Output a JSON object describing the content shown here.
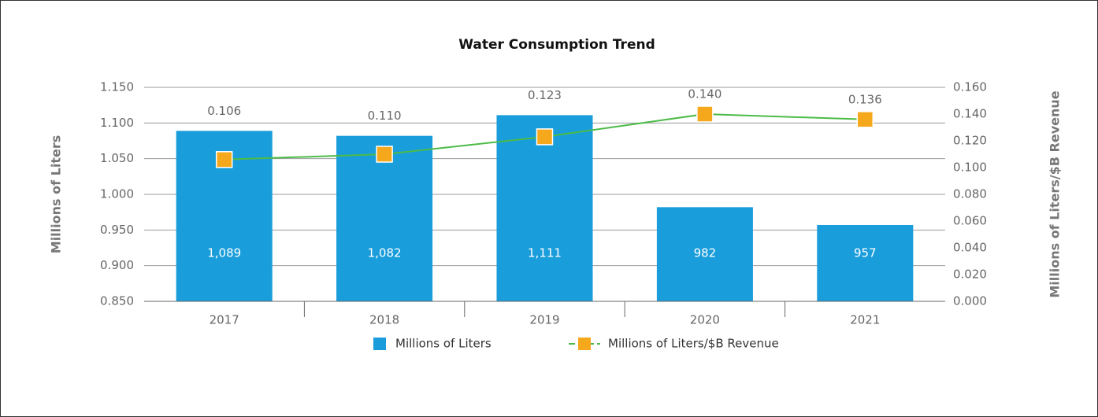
{
  "chart_data": {
    "type": "bar",
    "title": "Water Consumption Trend",
    "categories": [
      "2017",
      "2018",
      "2019",
      "2020",
      "2021"
    ],
    "y_label": "Millions of Liters",
    "y2_label": "Millions of Liters/$B Revenue",
    "ylim": [
      0.85,
      1.15
    ],
    "yticks": [
      {
        "value": 0.85,
        "label": "0.850"
      },
      {
        "value": 0.9,
        "label": "0.900"
      },
      {
        "value": 0.95,
        "label": "0.950"
      },
      {
        "value": 1.0,
        "label": "1.000"
      },
      {
        "value": 1.05,
        "label": "1.050"
      },
      {
        "value": 1.1,
        "label": "1.100"
      },
      {
        "value": 1.15,
        "label": "1.150"
      }
    ],
    "y2lim": [
      0,
      0.16
    ],
    "y2ticks": [
      {
        "value": 0,
        "label": "0.000"
      },
      {
        "value": 0.02,
        "label": "0.020"
      },
      {
        "value": 0.04,
        "label": "0.040"
      },
      {
        "value": 0.06,
        "label": "0.060"
      },
      {
        "value": 0.08,
        "label": "0.080"
      },
      {
        "value": 0.1,
        "label": "0.100"
      },
      {
        "value": 0.12,
        "label": "0.120"
      },
      {
        "value": 0.14,
        "label": "0.140"
      },
      {
        "value": 0.16,
        "label": "0.160"
      }
    ],
    "grid": true,
    "legend": "bottom",
    "series": [
      {
        "name": "Millions of Liters",
        "type": "bar",
        "color": "#1a9ddb",
        "values": [
          1.089,
          1.082,
          1.111,
          0.982,
          0.957
        ],
        "value_labels": [
          "1,089",
          "1,082",
          "1,111",
          "982",
          "957"
        ]
      },
      {
        "name": "Millions of Liters/$B Revenue",
        "type": "line",
        "axis": "y2",
        "color": "#4cbb47",
        "marker_color": "#f5a81c",
        "values": [
          0.106,
          0.11,
          0.123,
          0.14,
          0.136
        ],
        "value_labels": [
          "0.106",
          "0.110",
          "0.123",
          "0.140",
          "0.136"
        ]
      }
    ]
  }
}
